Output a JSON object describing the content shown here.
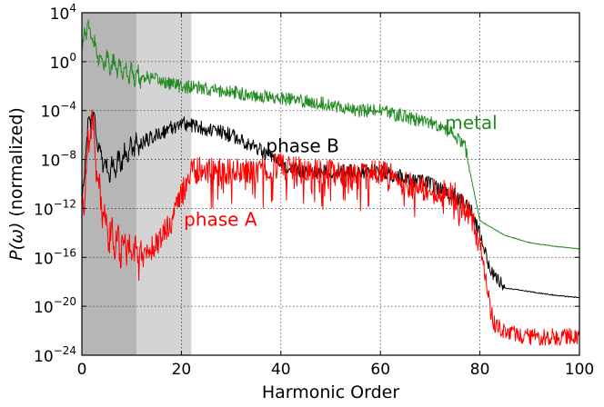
{
  "chart_data": {
    "type": "line",
    "title": "",
    "xlabel": "Harmonic Order",
    "ylabel_prefix": "P(ω)",
    "ylabel_suffix": " (normalized)",
    "xlim": [
      0,
      100
    ],
    "ylim_log10": [
      -24,
      4
    ],
    "y_scale": "log",
    "grid": true,
    "x_ticks": [
      0,
      20,
      40,
      60,
      80,
      100
    ],
    "y_tick_exponents": [
      -24,
      -20,
      -16,
      -12,
      -8,
      -4,
      0,
      4
    ],
    "y_tick_base": "10",
    "shaded_regions": [
      {
        "x_start": 0,
        "x_end": 11,
        "color": "#a9a9a9"
      },
      {
        "x_start": 11,
        "x_end": 22,
        "color": "#cccccc"
      }
    ],
    "series": [
      {
        "name": "metal",
        "color": "#228b22",
        "x": [
          0,
          1,
          2,
          3,
          4,
          5,
          7,
          10,
          15,
          20,
          30,
          40,
          50,
          55,
          60,
          65,
          70,
          73,
          75,
          77,
          78,
          80,
          85,
          90,
          95,
          100
        ],
        "log10_y": [
          1,
          3,
          2,
          1,
          0,
          0,
          -0.5,
          -1,
          -1.5,
          -2,
          -2.5,
          -3,
          -3.5,
          -4,
          -4,
          -4.5,
          -5,
          -5.5,
          -6,
          -7,
          -9,
          -13,
          -14.2,
          -14.8,
          -15.1,
          -15.3
        ]
      },
      {
        "name": "phase B",
        "color": "#000000",
        "x": [
          0,
          1,
          2,
          3,
          4,
          5,
          8,
          10,
          15,
          20,
          25,
          30,
          35,
          40,
          45,
          50,
          55,
          60,
          65,
          70,
          75,
          78,
          80,
          82,
          85,
          90,
          95,
          100
        ],
        "log10_y": [
          -12,
          -6,
          -4,
          -6,
          -8,
          -9,
          -8,
          -7,
          -6,
          -5,
          -5.5,
          -6,
          -7,
          -8.5,
          -9,
          -9,
          -9,
          -9,
          -9.5,
          -10,
          -11,
          -12,
          -14,
          -17,
          -18.5,
          -18.8,
          -19.1,
          -19.3
        ]
      },
      {
        "name": "phase A",
        "color": "#ff0000",
        "x": [
          0,
          1,
          2,
          3,
          4,
          5,
          8,
          10,
          12,
          15,
          18,
          20,
          22,
          25,
          30,
          35,
          40,
          45,
          50,
          55,
          60,
          65,
          70,
          75,
          78,
          80,
          82,
          83,
          85,
          90,
          95,
          100
        ],
        "log10_y": [
          -13,
          -8,
          -4.5,
          -9,
          -12,
          -14,
          -15,
          -15.5,
          -16,
          -15,
          -13,
          -11,
          -9,
          -8.8,
          -9,
          -9,
          -8.5,
          -9,
          -9,
          -9.5,
          -9,
          -10,
          -10.5,
          -11,
          -12.5,
          -15,
          -20,
          -21.5,
          -22,
          -22.5,
          -22.5,
          -22.5
        ]
      }
    ],
    "annotations": [
      {
        "text": "metal",
        "x": 73,
        "log10_y": -5.5
      },
      {
        "text": "phase B",
        "x": 37,
        "log10_y": -7.4
      },
      {
        "text": "phase A",
        "x": 20.5,
        "log10_y": -13.4
      }
    ]
  }
}
